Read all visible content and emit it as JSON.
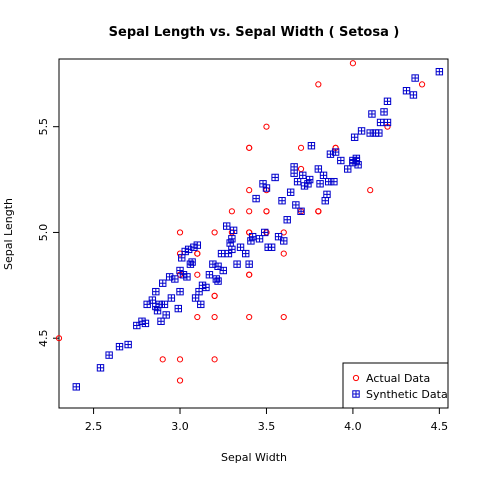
{
  "chart_data": {
    "type": "scatter",
    "title": "Sepal Length  vs.  Sepal Width  ( Setosa )",
    "xlabel": "Sepal Width",
    "ylabel": "Sepal Length",
    "xlim": [
      2.3,
      4.55
    ],
    "ylim": [
      4.17,
      5.82
    ],
    "x_ticks": [
      "2.5",
      "3.0",
      "3.5",
      "4.0",
      "4.5"
    ],
    "y_ticks": [
      "4.5",
      "5.0",
      "5.5"
    ],
    "grid": false,
    "legend_position": "bottom-right",
    "series": [
      {
        "name": "Actual Data",
        "marker": "open-circle",
        "color": "#ff0000",
        "points": [
          [
            3.5,
            5.1
          ],
          [
            3.0,
            4.9
          ],
          [
            3.2,
            4.7
          ],
          [
            3.1,
            4.6
          ],
          [
            3.6,
            5.0
          ],
          [
            3.9,
            5.4
          ],
          [
            3.4,
            4.6
          ],
          [
            3.4,
            5.0
          ],
          [
            2.9,
            4.4
          ],
          [
            3.1,
            4.9
          ],
          [
            3.7,
            5.4
          ],
          [
            3.4,
            4.8
          ],
          [
            3.0,
            4.8
          ],
          [
            3.0,
            4.3
          ],
          [
            4.0,
            5.8
          ],
          [
            4.4,
            5.7
          ],
          [
            3.9,
            5.4
          ],
          [
            3.5,
            5.1
          ],
          [
            3.8,
            5.7
          ],
          [
            3.8,
            5.1
          ],
          [
            3.4,
            5.4
          ],
          [
            3.7,
            5.1
          ],
          [
            3.6,
            4.6
          ],
          [
            3.3,
            5.1
          ],
          [
            3.4,
            4.8
          ],
          [
            3.0,
            5.0
          ],
          [
            3.4,
            5.0
          ],
          [
            3.5,
            5.2
          ],
          [
            3.4,
            5.2
          ],
          [
            3.2,
            4.7
          ],
          [
            3.1,
            4.8
          ],
          [
            3.4,
            5.4
          ],
          [
            4.1,
            5.2
          ],
          [
            4.2,
            5.5
          ],
          [
            3.1,
            4.9
          ],
          [
            3.2,
            5.0
          ],
          [
            3.5,
            5.5
          ],
          [
            3.6,
            4.9
          ],
          [
            3.0,
            4.4
          ],
          [
            3.4,
            5.1
          ],
          [
            3.5,
            5.0
          ],
          [
            2.3,
            4.5
          ],
          [
            3.2,
            4.4
          ],
          [
            3.5,
            5.0
          ],
          [
            3.8,
            5.1
          ],
          [
            3.0,
            4.8
          ],
          [
            3.8,
            5.1
          ],
          [
            3.2,
            4.6
          ],
          [
            3.7,
            5.3
          ],
          [
            3.3,
            5.0
          ]
        ]
      },
      {
        "name": "Synthetic Data",
        "marker": "boxed-plus",
        "color": "#0000cc",
        "points": [
          [
            2.4,
            4.27
          ],
          [
            2.54,
            4.36
          ],
          [
            2.59,
            4.42
          ],
          [
            2.65,
            4.46
          ],
          [
            2.7,
            4.47
          ],
          [
            2.75,
            4.56
          ],
          [
            2.78,
            4.58
          ],
          [
            2.8,
            4.57
          ],
          [
            2.81,
            4.66
          ],
          [
            2.84,
            4.68
          ],
          [
            2.86,
            4.65
          ],
          [
            2.86,
            4.72
          ],
          [
            2.87,
            4.63
          ],
          [
            2.88,
            4.66
          ],
          [
            2.89,
            4.58
          ],
          [
            2.9,
            4.76
          ],
          [
            2.91,
            4.66
          ],
          [
            2.92,
            4.61
          ],
          [
            2.94,
            4.79
          ],
          [
            2.95,
            4.69
          ],
          [
            2.97,
            4.78
          ],
          [
            2.99,
            4.64
          ],
          [
            3.0,
            4.72
          ],
          [
            3.0,
            4.82
          ],
          [
            3.01,
            4.88
          ],
          [
            3.02,
            4.8
          ],
          [
            3.03,
            4.91
          ],
          [
            3.04,
            4.79
          ],
          [
            3.05,
            4.92
          ],
          [
            3.06,
            4.85
          ],
          [
            3.07,
            4.86
          ],
          [
            3.08,
            4.93
          ],
          [
            3.09,
            4.69
          ],
          [
            3.1,
            4.94
          ],
          [
            3.11,
            4.72
          ],
          [
            3.12,
            4.66
          ],
          [
            3.13,
            4.75
          ],
          [
            3.15,
            4.74
          ],
          [
            3.17,
            4.8
          ],
          [
            3.19,
            4.85
          ],
          [
            3.21,
            4.78
          ],
          [
            3.22,
            4.84
          ],
          [
            3.24,
            4.9
          ],
          [
            3.25,
            4.82
          ],
          [
            3.27,
            5.03
          ],
          [
            3.28,
            4.9
          ],
          [
            3.29,
            4.95
          ],
          [
            3.3,
            4.92
          ],
          [
            3.31,
            5.01
          ],
          [
            3.33,
            4.85
          ],
          [
            3.35,
            4.93
          ],
          [
            3.38,
            4.9
          ],
          [
            3.4,
            4.85
          ],
          [
            3.41,
            4.96
          ],
          [
            3.42,
            4.98
          ],
          [
            3.44,
            5.16
          ],
          [
            3.46,
            4.97
          ],
          [
            3.48,
            5.23
          ],
          [
            3.49,
            5.0
          ],
          [
            3.5,
            5.21
          ],
          [
            3.51,
            4.93
          ],
          [
            3.53,
            4.93
          ],
          [
            3.55,
            5.26
          ],
          [
            3.57,
            4.98
          ],
          [
            3.59,
            5.15
          ],
          [
            3.6,
            4.96
          ],
          [
            3.62,
            5.06
          ],
          [
            3.64,
            5.19
          ],
          [
            3.66,
            5.31
          ],
          [
            3.67,
            5.13
          ],
          [
            3.68,
            5.24
          ],
          [
            3.7,
            5.1
          ],
          [
            3.71,
            5.27
          ],
          [
            3.72,
            5.22
          ],
          [
            3.74,
            5.23
          ],
          [
            3.75,
            5.25
          ],
          [
            3.76,
            5.41
          ],
          [
            3.8,
            5.3
          ],
          [
            3.81,
            5.23
          ],
          [
            3.83,
            5.27
          ],
          [
            3.84,
            5.15
          ],
          [
            3.85,
            5.18
          ],
          [
            3.86,
            5.24
          ],
          [
            3.87,
            5.37
          ],
          [
            3.89,
            5.24
          ],
          [
            3.9,
            5.38
          ],
          [
            3.93,
            5.34
          ],
          [
            3.97,
            5.3
          ],
          [
            4.0,
            5.33
          ],
          [
            4.01,
            5.45
          ],
          [
            4.02,
            5.34
          ],
          [
            4.02,
            5.35
          ],
          [
            4.03,
            5.32
          ],
          [
            4.05,
            5.48
          ],
          [
            4.1,
            5.47
          ],
          [
            4.11,
            5.56
          ],
          [
            4.13,
            5.47
          ],
          [
            4.15,
            5.47
          ],
          [
            4.16,
            5.52
          ],
          [
            4.18,
            5.57
          ],
          [
            4.2,
            5.62
          ],
          [
            4.2,
            5.52
          ],
          [
            4.31,
            5.67
          ],
          [
            4.35,
            5.65
          ],
          [
            4.36,
            5.73
          ],
          [
            4.5,
            5.76
          ],
          [
            4.0,
            5.34
          ],
          [
            3.66,
            5.28
          ],
          [
            3.3,
            4.97
          ],
          [
            3.22,
            4.77
          ]
        ]
      }
    ]
  }
}
